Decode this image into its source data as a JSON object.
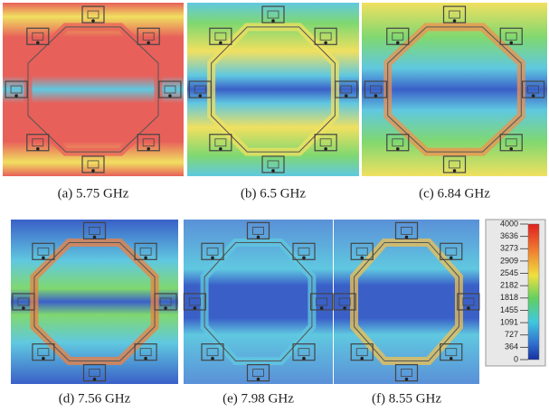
{
  "panels": [
    {
      "label": "(a) 5.75 GHz"
    },
    {
      "label": "(b) 6.5 GHz"
    },
    {
      "label": "(c) 6.84 GHz"
    },
    {
      "label": "(d) 7.56 GHz"
    },
    {
      "label": "(e) 7.98 GHz"
    },
    {
      "label": "(f) 8.55 GHz"
    }
  ],
  "colorbar": {
    "ticks": [
      4000,
      3636,
      3273,
      2909,
      2545,
      2182,
      1818,
      1455,
      1091,
      727,
      364,
      0
    ]
  }
}
